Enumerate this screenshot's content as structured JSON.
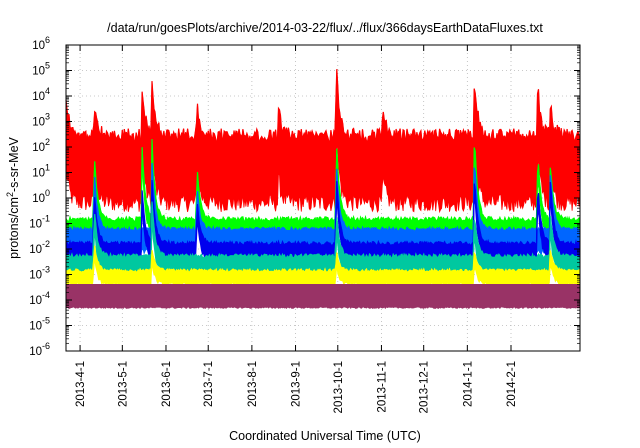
{
  "chart_data": {
    "type": "line",
    "title": "/data/run/goesPlots/archive/2014-03-22/flux/../flux/366daysEarthDataFluxes.txt",
    "xlabel": "Coordinated Universal Time (UTC)",
    "ylabel": "protons/cm²-s-sr-MeV",
    "yscale": "log",
    "ylim": [
      1e-06,
      1000000.0
    ],
    "xlim": [
      "2013-03-22",
      "2014-03-22"
    ],
    "grid": true,
    "x_ticks": [
      "2013-4-1",
      "2013-5-1",
      "2013-6-1",
      "2013-7-1",
      "2013-8-1",
      "2013-9-1",
      "2013-10-1",
      "2013-11-1",
      "2013-12-1",
      "2014-1-1",
      "2014-2-1"
    ],
    "y_ticks": [
      {
        "base": "10",
        "exp": "-6"
      },
      {
        "base": "10",
        "exp": "-5"
      },
      {
        "base": "10",
        "exp": "-4"
      },
      {
        "base": "10",
        "exp": "-3"
      },
      {
        "base": "10",
        "exp": "-2"
      },
      {
        "base": "10",
        "exp": "-1"
      },
      {
        "base": "10",
        "exp": "0"
      },
      {
        "base": "10",
        "exp": "1"
      },
      {
        "base": "10",
        "exp": "2"
      },
      {
        "base": "10",
        "exp": "3"
      },
      {
        "base": "10",
        "exp": "4"
      },
      {
        "base": "10",
        "exp": "5"
      },
      {
        "base": "10",
        "exp": "6"
      }
    ],
    "series": [
      {
        "color": "#ff0000",
        "baseline": 10,
        "spread": 1.2,
        "noise": 0.35,
        "events": [
          {
            "date": "2013-03-22",
            "peak": 300
          },
          {
            "date": "2013-04-11",
            "peak": 200
          },
          {
            "date": "2013-05-15",
            "peak": 1000
          },
          {
            "date": "2013-05-22",
            "peak": 2000
          },
          {
            "date": "2013-06-23",
            "peak": 200
          },
          {
            "date": "2013-08-20",
            "peak": 100
          },
          {
            "date": "2013-09-30",
            "peak": 10000
          },
          {
            "date": "2013-11-02",
            "peak": 100
          },
          {
            "date": "2014-01-06",
            "peak": 3000
          },
          {
            "date": "2014-02-20",
            "peak": 1000
          },
          {
            "date": "2014-03-01",
            "peak": 200
          }
        ]
      },
      {
        "color": "#00ff00",
        "baseline": 0.06,
        "spread": 0.3,
        "noise": 0.12,
        "events": [
          {
            "date": "2013-04-11",
            "peak": 30
          },
          {
            "date": "2013-05-15",
            "peak": 50
          },
          {
            "date": "2013-05-22",
            "peak": 100
          },
          {
            "date": "2013-06-23",
            "peak": 10
          },
          {
            "date": "2013-09-30",
            "peak": 100
          },
          {
            "date": "2014-01-06",
            "peak": 150
          },
          {
            "date": "2014-02-20",
            "peak": 30
          },
          {
            "date": "2014-03-01",
            "peak": 10
          }
        ]
      },
      {
        "color": "#0066ff",
        "baseline": 0.02,
        "spread": 0.4,
        "noise": 0.1,
        "events": [
          {
            "date": "2013-04-11",
            "peak": 5
          },
          {
            "date": "2013-05-22",
            "peak": 10
          },
          {
            "date": "2013-06-23",
            "peak": 1
          },
          {
            "date": "2013-09-30",
            "peak": 10
          },
          {
            "date": "2014-01-06",
            "peak": 20
          },
          {
            "date": "2014-03-01",
            "peak": 5
          }
        ]
      },
      {
        "color": "#0000ee",
        "baseline": 0.007,
        "spread": 0.3,
        "noise": 0.1,
        "events": [
          {
            "date": "2013-04-11",
            "peak": 1
          },
          {
            "date": "2013-05-15",
            "peak": 1
          },
          {
            "date": "2013-05-22",
            "peak": 3
          },
          {
            "date": "2013-06-23",
            "peak": 0.5
          },
          {
            "date": "2013-09-30",
            "peak": 5
          },
          {
            "date": "2014-01-06",
            "peak": 5
          },
          {
            "date": "2014-02-20",
            "peak": 2
          },
          {
            "date": "2014-03-01",
            "peak": 3
          }
        ]
      },
      {
        "color": "#00c8a0",
        "baseline": 0.002,
        "spread": 0.35,
        "noise": 0.1,
        "events": [
          {
            "date": "2013-04-11",
            "peak": 0.2
          },
          {
            "date": "2013-05-22",
            "peak": 0.3
          },
          {
            "date": "2013-09-30",
            "peak": 0.1
          },
          {
            "date": "2014-01-06",
            "peak": 0.1
          },
          {
            "date": "2014-03-01",
            "peak": 0.1
          }
        ]
      },
      {
        "color": "#ffff00",
        "baseline": 0.0007,
        "spread": 0.25,
        "noise": 0.08,
        "events": [
          {
            "date": "2013-04-11",
            "peak": 0.01
          },
          {
            "date": "2013-05-22",
            "peak": 0.005
          },
          {
            "date": "2013-09-30",
            "peak": 0.004
          },
          {
            "date": "2014-01-06",
            "peak": 0.004
          },
          {
            "date": "2014-03-01",
            "peak": 0.005
          }
        ]
      },
      {
        "color": "#993366",
        "baseline": 5e-05,
        "top": 0.0004,
        "spread": 0.1,
        "noise": 0.06,
        "events": []
      }
    ]
  }
}
